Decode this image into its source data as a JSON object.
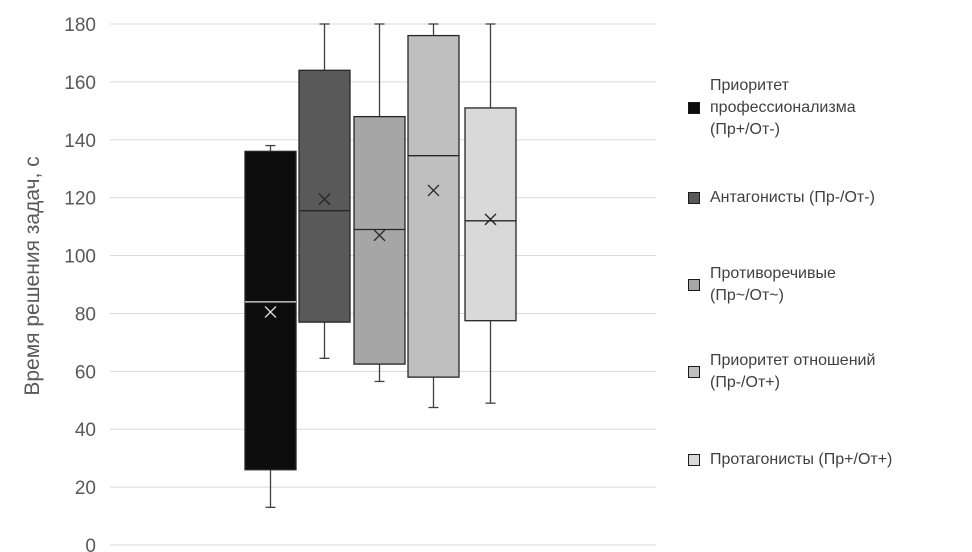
{
  "chart_data": {
    "type": "boxplot",
    "title": "",
    "xlabel": "",
    "ylabel": "Время решения задач, с",
    "ylim": [
      0,
      180
    ],
    "yticks": [
      0,
      20,
      40,
      60,
      80,
      100,
      120,
      140,
      160,
      180
    ],
    "grid": true,
    "legend_position": "right",
    "series": [
      {
        "name": "Приоритет профессионализма (Пр+/От-)",
        "color": "#0d0d0d",
        "min": 13,
        "q1": 26,
        "median": 84,
        "mean": 80.5,
        "q3": 136,
        "max": 138
      },
      {
        "name": "Антагонисты (Пр-/От-)",
        "color": "#595959",
        "min": 64.5,
        "q1": 77,
        "median": 115.5,
        "mean": 119.5,
        "q3": 164,
        "max": 180
      },
      {
        "name": "Противоречивые (Пр~/От~)",
        "color": "#a6a6a6",
        "min": 56.5,
        "q1": 62.5,
        "median": 109,
        "mean": 107,
        "q3": 148,
        "max": 180
      },
      {
        "name": "Приоритет отношений (Пр-/От+)",
        "color": "#bfbfbf",
        "min": 47.5,
        "q1": 58,
        "median": 134.5,
        "mean": 122.5,
        "q3": 176,
        "max": 180
      },
      {
        "name": "Протагонисты (Пр+/От+)",
        "color": "#d9d9d9",
        "min": 49,
        "q1": 77.5,
        "median": 112,
        "mean": 112.5,
        "q3": 151,
        "max": 180
      }
    ]
  },
  "legend": {
    "items": [
      {
        "label": "Приоритет\nпрофессионализма\n(Пр+/От-)"
      },
      {
        "label": "Антагонисты (Пр-/От-)"
      },
      {
        "label": "Противоречивые\n(Пр~/От~)"
      },
      {
        "label": "Приоритет отношений\n(Пр-/От+)"
      },
      {
        "label": "Протагонисты (Пр+/От+)"
      }
    ]
  }
}
